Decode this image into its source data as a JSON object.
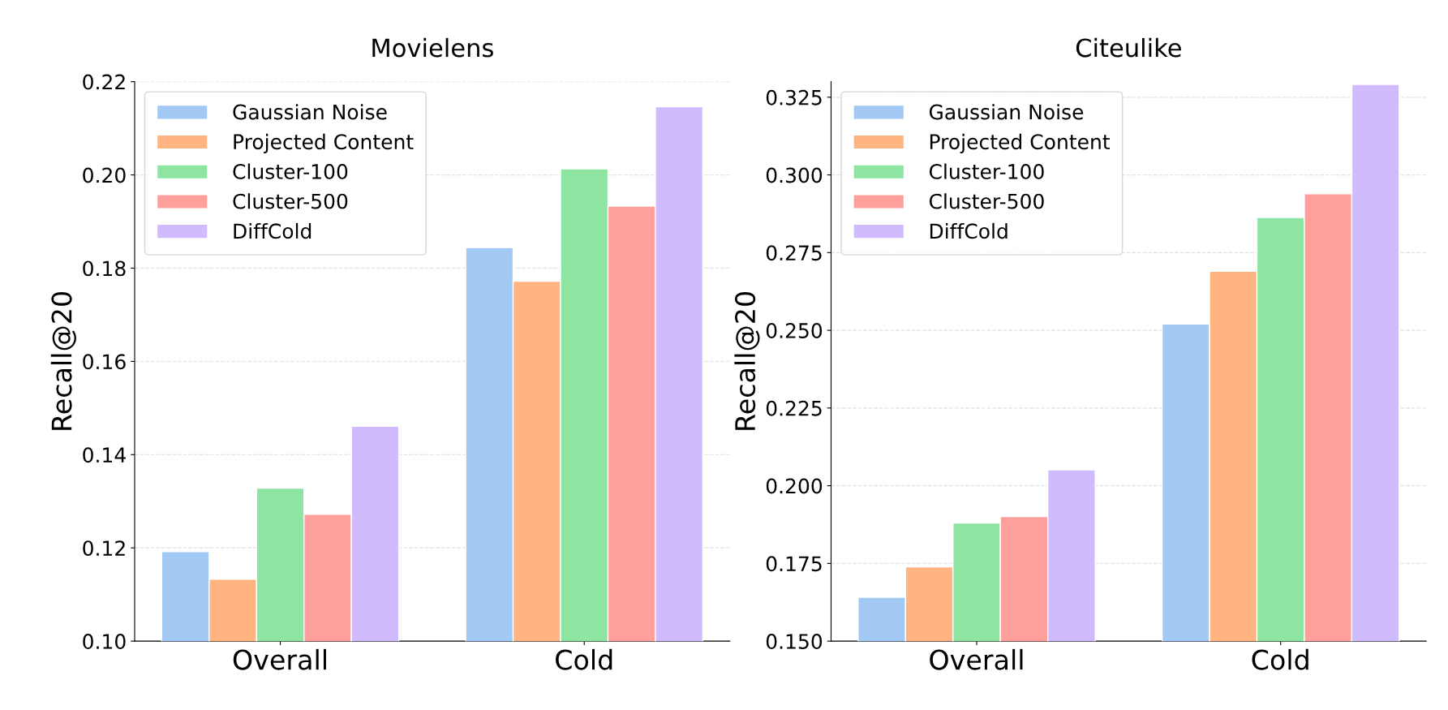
{
  "chart_data": [
    {
      "type": "bar",
      "title": "Movielens",
      "ylabel": "Recall@20",
      "categories": [
        "Overall",
        "Cold"
      ],
      "series": [
        {
          "name": "Gaussian Noise",
          "color": "#a1c9f4",
          "values": [
            0.1192,
            0.1844
          ]
        },
        {
          "name": "Projected Content",
          "color": "#ffb482",
          "values": [
            0.1133,
            0.1772
          ]
        },
        {
          "name": "Cluster-100",
          "color": "#8de5a1",
          "values": [
            0.1328,
            0.2013
          ]
        },
        {
          "name": "Cluster-500",
          "color": "#ff9f9b",
          "values": [
            0.1272,
            0.1933
          ]
        },
        {
          "name": "DiffCold",
          "color": "#d0bbff",
          "values": [
            0.1461,
            0.2146
          ]
        }
      ],
      "ylim": [
        0.1,
        0.22
      ],
      "yticks": [
        {
          "value": 0.1,
          "label": "0.10"
        },
        {
          "value": 0.12,
          "label": "0.12"
        },
        {
          "value": 0.14,
          "label": "0.14"
        },
        {
          "value": 0.16,
          "label": "0.16"
        },
        {
          "value": 0.18,
          "label": "0.18"
        },
        {
          "value": 0.2,
          "label": "0.20"
        },
        {
          "value": 0.22,
          "label": "0.22"
        }
      ],
      "grid": "y",
      "legend": "top left"
    },
    {
      "type": "bar",
      "title": "Citeulike",
      "ylabel": "Recall@20",
      "categories": [
        "Overall",
        "Cold"
      ],
      "series": [
        {
          "name": "Gaussian Noise",
          "color": "#a1c9f4",
          "values": [
            0.1641,
            0.252
          ]
        },
        {
          "name": "Projected Content",
          "color": "#ffb482",
          "values": [
            0.1739,
            0.269
          ]
        },
        {
          "name": "Cluster-100",
          "color": "#8de5a1",
          "values": [
            0.188,
            0.2863
          ]
        },
        {
          "name": "Cluster-500",
          "color": "#ff9f9b",
          "values": [
            0.1901,
            0.2939
          ]
        },
        {
          "name": "DiffCold",
          "color": "#d0bbff",
          "values": [
            0.2051,
            0.3291
          ]
        }
      ],
      "ylim": [
        0.15,
        0.33
      ],
      "yticks": [
        {
          "value": 0.15,
          "label": "0.150"
        },
        {
          "value": 0.175,
          "label": "0.175"
        },
        {
          "value": 0.2,
          "label": "0.200"
        },
        {
          "value": 0.225,
          "label": "0.225"
        },
        {
          "value": 0.25,
          "label": "0.250"
        },
        {
          "value": 0.275,
          "label": "0.275"
        },
        {
          "value": 0.3,
          "label": "0.300"
        },
        {
          "value": 0.325,
          "label": "0.325"
        }
      ],
      "grid": "y",
      "legend": "top left"
    }
  ]
}
